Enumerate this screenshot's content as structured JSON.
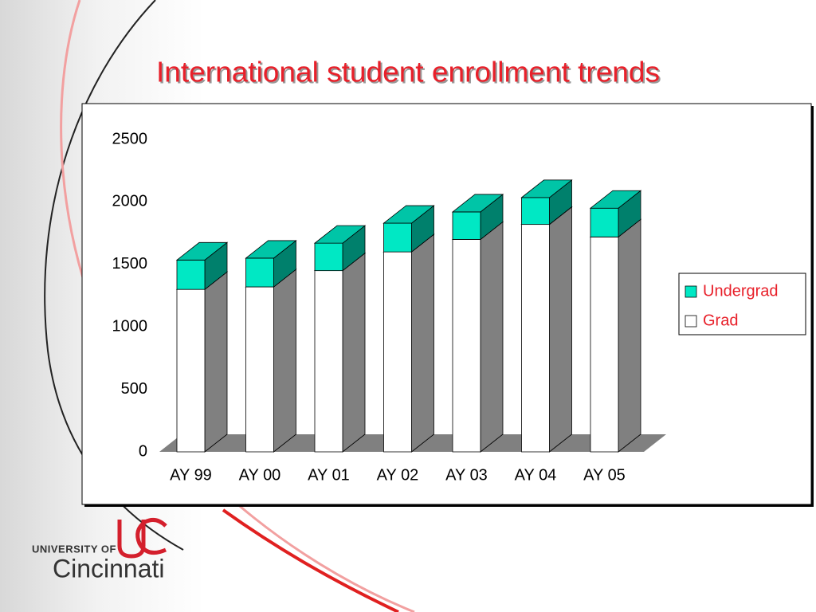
{
  "chart_data": {
    "type": "stacked-bar-3d",
    "title": "International student enrollment trends",
    "categories": [
      "AY 99",
      "AY 00",
      "AY 01",
      "AY 02",
      "AY 03",
      "AY 04",
      "AY 05"
    ],
    "series": [
      {
        "name": "Grad",
        "color": "#ffffff",
        "values": [
          1300,
          1320,
          1450,
          1600,
          1700,
          1820,
          1720
        ]
      },
      {
        "name": "Undergrad",
        "color": "#00e8c4",
        "values": [
          235,
          230,
          220,
          230,
          220,
          215,
          230
        ]
      }
    ],
    "ylim": [
      0,
      2500
    ],
    "yticks": [
      0,
      500,
      1000,
      1500,
      2000,
      2500
    ],
    "grid": false,
    "legend": "right"
  },
  "logo": {
    "line1": "UNIVERSITY OF",
    "line2": "Cincinnati"
  }
}
